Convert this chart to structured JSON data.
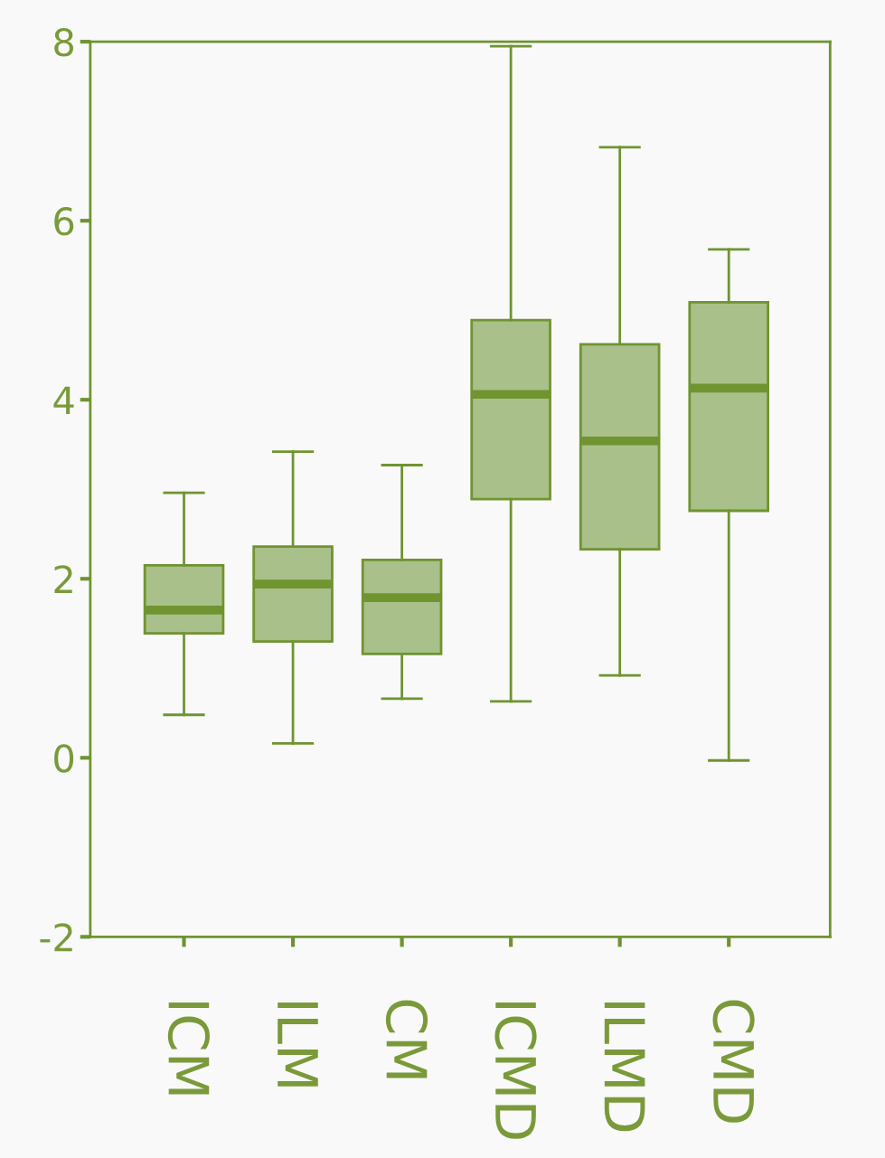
{
  "chart_data": {
    "type": "box",
    "categories": [
      "ICM",
      "ILM",
      "CM",
      "ICMD",
      "ILMD",
      "CMD"
    ],
    "series": [
      {
        "color": "#a9c08a",
        "boxes": [
          {
            "low": 0.48,
            "q1": 1.39,
            "median": 1.65,
            "q3": 2.15,
            "high": 2.96
          },
          {
            "low": 0.16,
            "q1": 1.3,
            "median": 1.94,
            "q3": 2.36,
            "high": 3.42
          },
          {
            "low": 0.66,
            "q1": 1.16,
            "median": 1.79,
            "q3": 2.21,
            "high": 3.27
          },
          {
            "low": 0.63,
            "q1": 2.89,
            "median": 4.06,
            "q3": 4.89,
            "high": 7.95
          },
          {
            "low": 0.92,
            "q1": 2.33,
            "median": 3.54,
            "q3": 4.62,
            "high": 6.82
          },
          {
            "low": -0.03,
            "q1": 2.76,
            "median": 4.13,
            "q3": 5.09,
            "high": 5.68
          }
        ]
      }
    ],
    "ylim": [
      -2,
      8
    ],
    "yticks": [
      -2,
      0,
      2,
      4,
      6,
      8
    ],
    "grid": false,
    "legend": false
  }
}
